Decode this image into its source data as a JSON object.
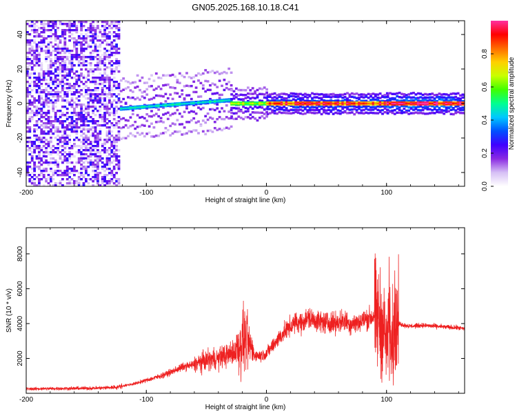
{
  "title": "GN05.2025.168.10.18.C41",
  "chart_data": [
    {
      "type": "heatmap",
      "xlabel": "Height of straight line (km)",
      "ylabel": "Frequency (Hz)",
      "xlim": [
        -200,
        165
      ],
      "ylim": [
        -48,
        48
      ],
      "xticks": [
        -200,
        -100,
        0,
        100
      ],
      "yticks": [
        -40,
        -20,
        0,
        20,
        40
      ],
      "colorbar": {
        "label": "Normalized spectral amplitude",
        "range": [
          0,
          1
        ],
        "ticks": [
          0.0,
          0.2,
          0.4,
          0.6,
          0.8
        ],
        "colors": [
          "#ffffff",
          "#d6c0f5",
          "#8a2be2",
          "#3f00ff",
          "#0050ff",
          "#00c8ff",
          "#00ff90",
          "#40ff00",
          "#c8ff00",
          "#ffd000",
          "#ff6a00",
          "#ff0000",
          "#ff30a0"
        ]
      },
      "regions": [
        {
          "x_range": [
            -200,
            -122
          ],
          "freq_spread": 48,
          "amplitude": 0.15
        },
        {
          "x_range": [
            -122,
            -30
          ],
          "freq_center_start": -3,
          "freq_center_end": 2,
          "freq_spread": 6,
          "amplitude": 0.4
        },
        {
          "x_range": [
            -30,
            0
          ],
          "freq_center": 0,
          "freq_spread": 3,
          "amplitude": 0.6
        },
        {
          "x_range": [
            0,
            100
          ],
          "freq_center": 0,
          "freq_spread": 2,
          "amplitude": 0.85
        },
        {
          "x_range": [
            100,
            165
          ],
          "freq_center": 0,
          "freq_spread": 2,
          "amplitude": 0.95
        }
      ]
    },
    {
      "type": "line",
      "xlabel": "Height of straight line (km)",
      "ylabel": "SNR (10 * v/v)",
      "xlim": [
        -200,
        165
      ],
      "ylim": [
        0,
        9500
      ],
      "xticks": [
        -200,
        -100,
        0,
        100
      ],
      "yticks": [
        2000,
        4000,
        6000,
        8000
      ],
      "series": [
        {
          "color": "#ee2020",
          "x": [
            -200,
            -180,
            -160,
            -140,
            -125,
            -110,
            -100,
            -90,
            -80,
            -70,
            -60,
            -50,
            -45,
            -40,
            -35,
            -30,
            -25,
            -20,
            -15,
            -12,
            -10,
            -5,
            0,
            5,
            10,
            15,
            20,
            25,
            30,
            35,
            40,
            45,
            50,
            55,
            60,
            65,
            70,
            75,
            80,
            85,
            90,
            95,
            98,
            100,
            102,
            104,
            106,
            108,
            110,
            115,
            120,
            130,
            140,
            150,
            160,
            165
          ],
          "y": [
            250,
            270,
            280,
            300,
            350,
            550,
            750,
            950,
            1200,
            1500,
            1650,
            1900,
            1950,
            2000,
            2150,
            2250,
            2450,
            3000,
            2900,
            2500,
            2200,
            2150,
            2300,
            2700,
            3150,
            3500,
            3850,
            4050,
            4100,
            4300,
            4200,
            4100,
            4050,
            4050,
            4100,
            4150,
            4000,
            4050,
            4150,
            4300,
            4450,
            4000,
            3600,
            2800,
            4300,
            3000,
            4100,
            4200,
            4000,
            3900,
            3850,
            3900,
            3850,
            3800,
            3750,
            3700
          ]
        }
      ]
    }
  ]
}
